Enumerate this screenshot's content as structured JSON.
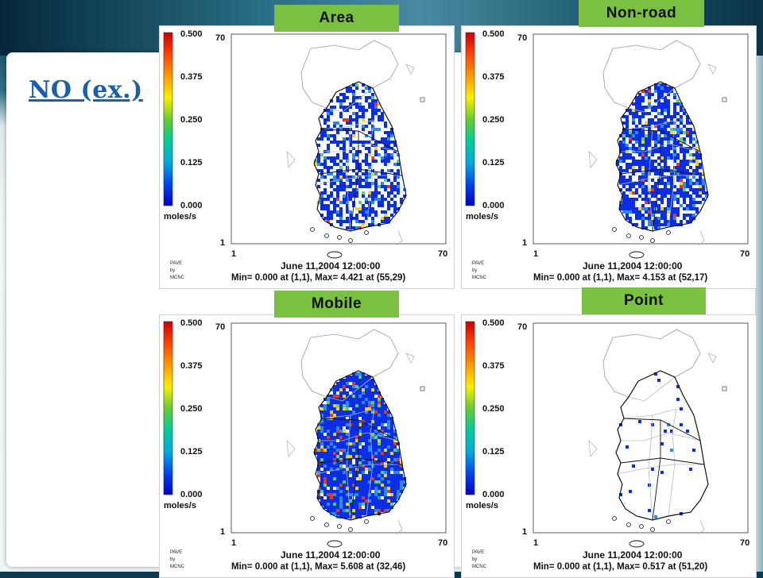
{
  "slide": {
    "title": "NO (ex.)"
  },
  "colorbar": {
    "ticks": [
      "0.500",
      "0.375",
      "0.250",
      "0.125",
      "0.000"
    ],
    "unit": "moles/s",
    "stops": [
      "#cc0000",
      "#ff4400",
      "#ff9900",
      "#ffee00",
      "#66cc33",
      "#00cc99",
      "#00aadd",
      "#0044ee",
      "#0000cc"
    ]
  },
  "axes": {
    "y_top": "70",
    "y_bottom": "1",
    "x_left": "1",
    "x_right": "70"
  },
  "credit": [
    "PAVE",
    "by",
    "MCNC"
  ],
  "panels": [
    {
      "label": "Area",
      "date": "June 11,2004 12:00:00",
      "minmax": "Min=   0.000 at (1,1), Max=   4.421 at (55,29)",
      "density": 0.55,
      "hot": 0.06
    },
    {
      "label": "Non-road",
      "date": "June 11,2004 12:00:00",
      "minmax": "Min=   0.000 at (1,1), Max=   4.153 at (52,17)",
      "density": 0.72,
      "hot": 0.05
    },
    {
      "label": "Mobile",
      "date": "June 11,2004 12:00:00",
      "minmax": "Min=   0.000 at (1,1), Max=   5.608 at (32,46)",
      "density": 0.95,
      "hot": 0.14
    },
    {
      "label": "Point",
      "date": "June 11,2004 12:00:00",
      "minmax": "Min=   0.000 at (1,1), Max=   0.517 at (51,20)",
      "density": 0.04,
      "hot": 0.01
    }
  ]
}
